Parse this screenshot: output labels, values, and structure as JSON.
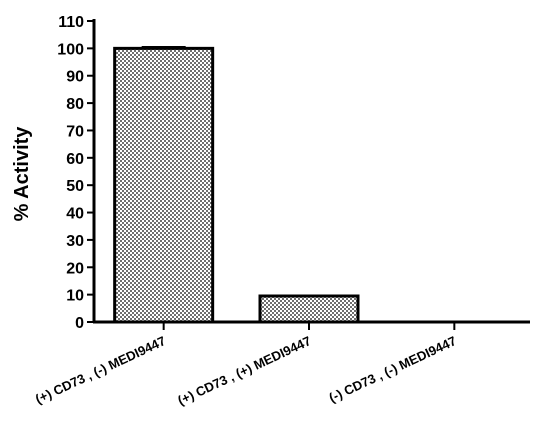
{
  "chart_data": {
    "type": "bar",
    "title": "",
    "xlabel": "",
    "ylabel": "% Activity",
    "categories": [
      "(+) CD73 , (-) MEDI9447",
      "(+) CD73 , (+) MEDI9447",
      "(-) CD73 , (-) MEDI9447"
    ],
    "values": [
      100,
      9.5,
      0
    ],
    "error": [
      0.5,
      0,
      0
    ],
    "ylim": [
      0,
      110
    ],
    "yticks": [
      0,
      10,
      20,
      30,
      40,
      50,
      60,
      70,
      80,
      90,
      100,
      110
    ],
    "grid": false,
    "legend": "none",
    "bar_fill": "crosshatch",
    "colors": {
      "bar_fill": "#8c8c8c",
      "bar_stroke": "#000000",
      "axis": "#000000"
    }
  }
}
